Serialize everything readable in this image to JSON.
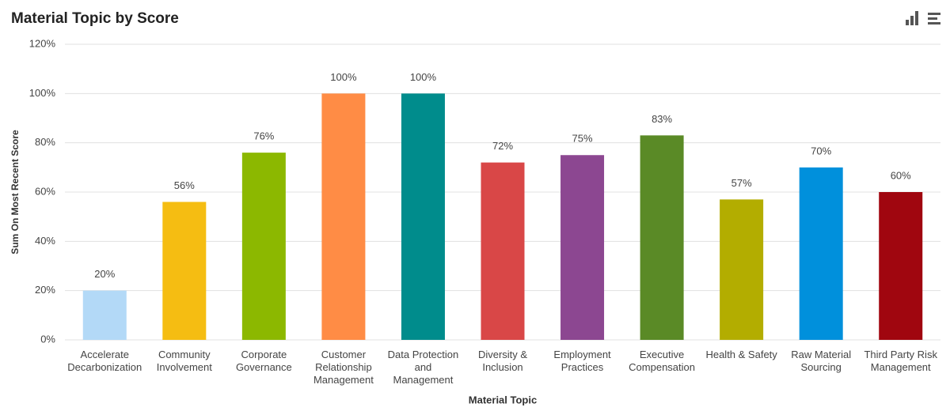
{
  "chart_data": {
    "type": "bar",
    "title": "Material Topic by Score",
    "x_label": "Material Topic",
    "y_label": "Sum On Most Recent Score",
    "categories": [
      "Accelerate Decarbonization",
      "Community Involvement",
      "Corporate Governance",
      "Customer Relationship Management",
      "Data Protection and Management",
      "Diversity & Inclusion",
      "Employment Practices",
      "Executive Compensation",
      "Health & Safety",
      "Raw Material Sourcing",
      "Third Party Risk Management"
    ],
    "values": [
      20,
      56,
      76,
      100,
      100,
      72,
      75,
      83,
      57,
      70,
      60
    ],
    "value_labels": [
      "20%",
      "56%",
      "76%",
      "100%",
      "100%",
      "72%",
      "75%",
      "83%",
      "57%",
      "70%",
      "60%"
    ],
    "colors": [
      "#b3d9f7",
      "#f5bd12",
      "#8cb800",
      "#ff8c45",
      "#008c8c",
      "#d94747",
      "#8c4791",
      "#5a8a26",
      "#b3ad00",
      "#0090dc",
      "#a0060f"
    ],
    "ylim": [
      0,
      120
    ],
    "yticks": [
      {
        "value": 0,
        "label": "0%"
      },
      {
        "value": 20,
        "label": "20%"
      },
      {
        "value": 40,
        "label": "40%"
      },
      {
        "value": 60,
        "label": "60%"
      },
      {
        "value": 80,
        "label": "80%"
      },
      {
        "value": 100,
        "label": "100%"
      },
      {
        "value": 120,
        "label": "120%"
      }
    ],
    "grid": true
  }
}
